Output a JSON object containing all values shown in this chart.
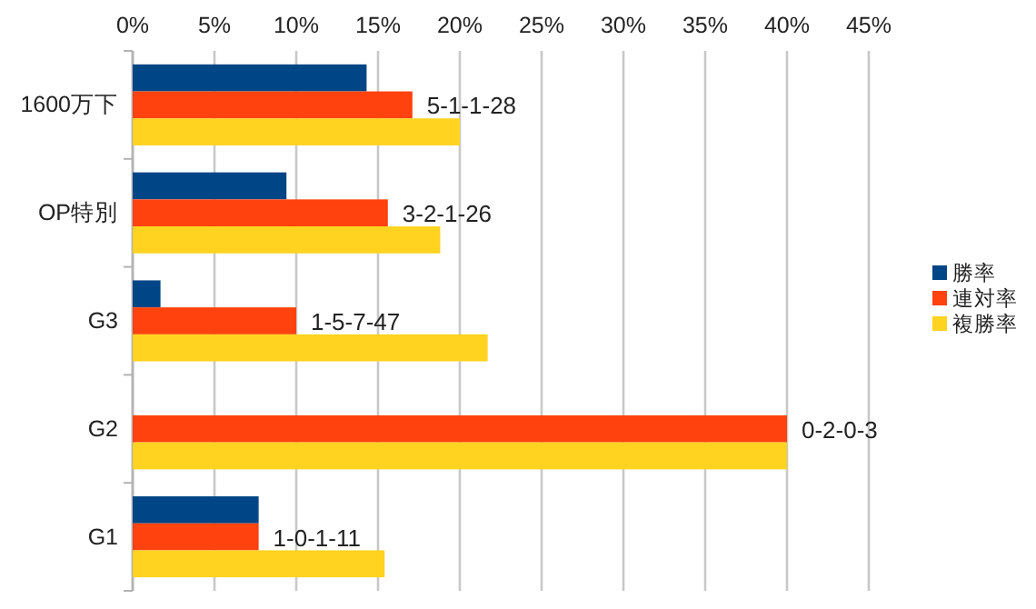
{
  "chart_data": {
    "type": "bar",
    "orientation": "horizontal",
    "categories": [
      "1600万下",
      "OP特別",
      "G3",
      "G2",
      "G1"
    ],
    "series": [
      {
        "name": "勝率",
        "color": "#004586",
        "values": [
          14.3,
          9.4,
          1.7,
          0,
          7.7
        ]
      },
      {
        "name": "連対率",
        "color": "#ff420e",
        "values": [
          17.1,
          15.6,
          10,
          40,
          7.7
        ]
      },
      {
        "name": "複勝率",
        "color": "#ffd320",
        "values": [
          20,
          18.8,
          21.7,
          40,
          15.4
        ]
      }
    ],
    "xlim": [
      0,
      45
    ],
    "xticks": [
      {
        "value": 0,
        "label": "0%"
      },
      {
        "value": 5,
        "label": "5%"
      },
      {
        "value": 10,
        "label": "10%"
      },
      {
        "value": 15,
        "label": "15%"
      },
      {
        "value": 20,
        "label": "20%"
      },
      {
        "value": 25,
        "label": "25%"
      },
      {
        "value": 30,
        "label": "30%"
      },
      {
        "value": 35,
        "label": "35%"
      },
      {
        "value": 40,
        "label": "40%"
      },
      {
        "value": 45,
        "label": "45%"
      }
    ],
    "grid": "x",
    "legend": "right",
    "annotations": [
      {
        "text": "5-1-1-28",
        "x": 17.1,
        "y": "1600万下"
      },
      {
        "text": "3-2-1-26",
        "x": 15.6,
        "y": "OP特別"
      },
      {
        "text": "1-5-7-47",
        "x": 10,
        "y": "G3"
      },
      {
        "text": "0-2-0-3",
        "x": 40,
        "y": "G2"
      },
      {
        "text": "1-0-1-11",
        "x": 7.7,
        "y": "G1"
      }
    ]
  }
}
